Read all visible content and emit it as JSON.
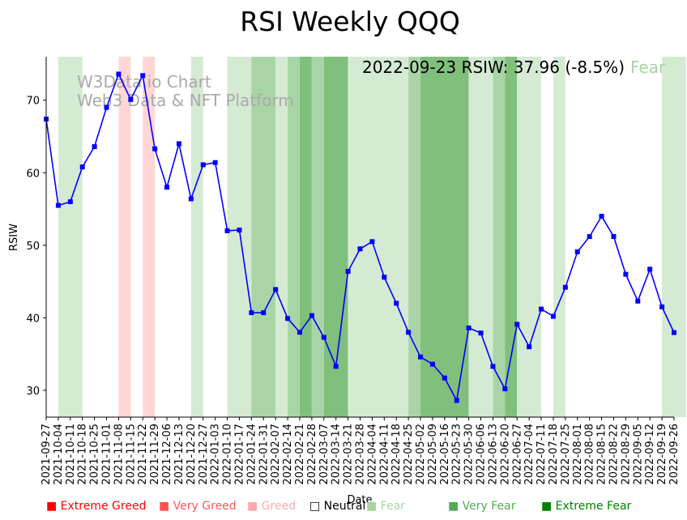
{
  "chart_data": {
    "type": "line",
    "title": "RSI Weekly QQQ",
    "xlabel": "Date",
    "ylabel": "RSIW",
    "ylim": [
      26.3,
      76
    ],
    "yticks": [
      30,
      40,
      50,
      60,
      70
    ],
    "annotation": {
      "main": "2022-09-23 RSIW: 37.96 (-8.5%)",
      "status": "Fear",
      "status_color": "#a6d4a3"
    },
    "watermark": [
      "W3Data.io Chart",
      "Web3 Data & NFT Platform"
    ],
    "x": [
      "2021-09-27",
      "2021-10-04",
      "2021-10-11",
      "2021-10-18",
      "2021-10-25",
      "2021-11-01",
      "2021-11-08",
      "2021-11-15",
      "2021-11-22",
      "2021-11-29",
      "2021-12-06",
      "2021-12-13",
      "2021-12-20",
      "2021-12-27",
      "2022-01-03",
      "2022-01-10",
      "2022-01-17",
      "2022-01-24",
      "2022-01-31",
      "2022-02-07",
      "2022-02-14",
      "2022-02-21",
      "2022-02-28",
      "2022-03-07",
      "2022-03-14",
      "2022-03-21",
      "2022-03-28",
      "2022-04-04",
      "2022-04-11",
      "2022-04-18",
      "2022-04-25",
      "2022-05-02",
      "2022-05-09",
      "2022-05-16",
      "2022-05-23",
      "2022-05-30",
      "2022-06-06",
      "2022-06-13",
      "2022-06-20",
      "2022-06-27",
      "2022-07-04",
      "2022-07-11",
      "2022-07-18",
      "2022-07-25",
      "2022-08-01",
      "2022-08-08",
      "2022-08-15",
      "2022-08-22",
      "2022-08-29",
      "2022-09-05",
      "2022-09-12",
      "2022-09-19",
      "2022-09-26"
    ],
    "series": [
      {
        "name": "RSIW",
        "color": "#0000ff",
        "values": [
          67.4,
          55.5,
          56.0,
          60.8,
          63.6,
          69.0,
          73.6,
          70.1,
          73.4,
          63.3,
          58.0,
          64.0,
          56.4,
          61.1,
          61.4,
          52.0,
          52.1,
          40.7,
          40.7,
          43.9,
          39.9,
          38.0,
          40.3,
          37.3,
          33.3,
          46.4,
          49.5,
          50.5,
          45.6,
          42.0,
          38.0,
          34.6,
          33.6,
          31.7,
          28.6,
          38.6,
          37.9,
          33.3,
          30.2,
          39.1,
          36.0,
          41.2,
          40.2,
          44.2,
          49.1,
          51.2,
          54.0,
          51.2,
          46.0,
          42.3,
          46.7,
          41.5,
          37.96
        ]
      }
    ],
    "bands": [
      {
        "from": 1,
        "to": 3,
        "level": "Fear"
      },
      {
        "from": 6,
        "to": 7,
        "level": "Very Greed"
      },
      {
        "from": 8,
        "to": 9,
        "level": "Very Greed"
      },
      {
        "from": 12,
        "to": 13,
        "level": "Fear"
      },
      {
        "from": 15,
        "to": 17,
        "level": "Fear"
      },
      {
        "from": 17,
        "to": 19,
        "level": "Very Fear"
      },
      {
        "from": 19,
        "to": 20,
        "level": "Fear"
      },
      {
        "from": 20,
        "to": 21,
        "level": "Very Fear"
      },
      {
        "from": 21,
        "to": 22,
        "level": "Extreme Fear"
      },
      {
        "from": 22,
        "to": 23,
        "level": "Very Fear"
      },
      {
        "from": 23,
        "to": 25,
        "level": "Extreme Fear"
      },
      {
        "from": 25,
        "to": 30,
        "level": "Fear"
      },
      {
        "from": 30,
        "to": 31,
        "level": "Very Fear"
      },
      {
        "from": 31,
        "to": 35,
        "level": "Extreme Fear"
      },
      {
        "from": 35,
        "to": 37,
        "level": "Fear"
      },
      {
        "from": 37,
        "to": 38,
        "level": "Very Fear"
      },
      {
        "from": 38,
        "to": 39,
        "level": "Extreme Fear"
      },
      {
        "from": 39,
        "to": 41,
        "level": "Fear"
      },
      {
        "from": 42,
        "to": 43,
        "level": "Fear"
      },
      {
        "from": 51,
        "to": 53,
        "level": "Fear"
      }
    ],
    "band_colors": {
      "Extreme Greed": "#ff9999",
      "Very Greed": "#ffd6d6",
      "Greed": "#ffe8e8",
      "Neutral": "#ffffff",
      "Fear": "#d5ead3",
      "Very Fear": "#a9d5a6",
      "Extreme Fear": "#80c07c"
    },
    "legend": [
      {
        "symbol": "■",
        "label": "Extreme Greed",
        "color": "#ff0000"
      },
      {
        "symbol": "■",
        "label": "Very Greed",
        "color": "#ff5555"
      },
      {
        "symbol": "■",
        "label": "Greed",
        "color": "#ffaaaa"
      },
      {
        "symbol": "□",
        "label": "Neutral",
        "color": "#000000"
      },
      {
        "symbol": "■",
        "label": "Fear",
        "color": "#a6d4a3"
      },
      {
        "symbol": "■",
        "label": "Very Fear",
        "color": "#55aa55"
      },
      {
        "symbol": "■",
        "label": "Extreme Fear",
        "color": "#008000"
      }
    ]
  }
}
